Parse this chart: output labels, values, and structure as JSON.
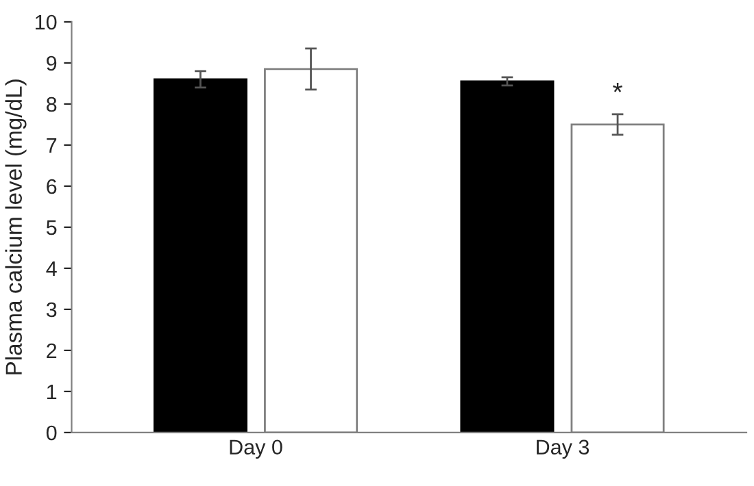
{
  "chart_data": {
    "type": "bar",
    "ylabel": "Plasma calcium level (mg/dL)",
    "categories": [
      "Day 0",
      "Day 3"
    ],
    "series": [
      {
        "color": "#000000",
        "values": [
          8.6,
          8.55
        ],
        "errors": [
          0.2,
          0.1
        ]
      },
      {
        "color": "#ffffff",
        "values": [
          8.85,
          7.5
        ],
        "errors": [
          0.5,
          0.25
        ]
      }
    ],
    "ylim": [
      0,
      10
    ],
    "yticks": [
      0,
      1,
      2,
      3,
      4,
      5,
      6,
      7,
      8,
      9,
      10
    ],
    "grid": false,
    "legend": false,
    "annotations": [
      "*"
    ]
  }
}
